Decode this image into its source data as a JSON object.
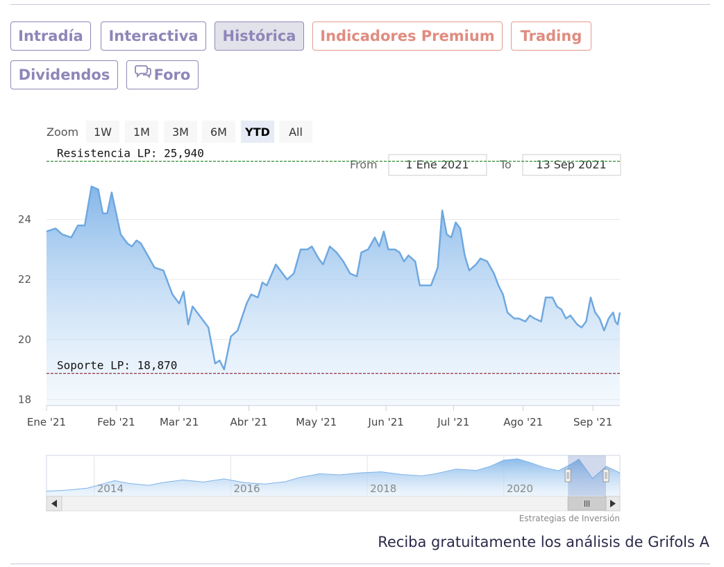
{
  "tabs": [
    {
      "label": "Intradía",
      "style": "normal"
    },
    {
      "label": "Interactiva",
      "style": "normal"
    },
    {
      "label": "Histórica",
      "style": "active"
    },
    {
      "label": "Indicadores Premium",
      "style": "premium"
    },
    {
      "label": "Trading",
      "style": "premium"
    },
    {
      "label": "Dividendos",
      "style": "normal"
    },
    {
      "label": "Foro",
      "style": "normal",
      "icon": "chat-bubbles-icon"
    }
  ],
  "range_selector": {
    "zoom_label": "Zoom",
    "buttons": [
      "1W",
      "1M",
      "3M",
      "6M",
      "YTD",
      "All"
    ],
    "selected": "YTD",
    "from_label": "From",
    "from_value": "1 Ene 2021",
    "to_label": "To",
    "to_value": "13 Sep 2021"
  },
  "chart_data": {
    "type": "area",
    "title": "",
    "xlabel": "",
    "ylabel": "",
    "x_ticks": [
      "Ene '21",
      "Feb '21",
      "Mar '21",
      "Abr '21",
      "May '21",
      "Jun '21",
      "Jul '21",
      "Ago '21",
      "Sep '21"
    ],
    "y_ticks": [
      18,
      20,
      22,
      24
    ],
    "ylim": [
      17.8,
      26.0
    ],
    "xlim": [
      "2021-01-01",
      "2021-09-13"
    ],
    "grid": true,
    "series": [
      {
        "points": [
          [
            "2021-01-01",
            23.6
          ],
          [
            "2021-01-05",
            23.7
          ],
          [
            "2021-01-08",
            23.5
          ],
          [
            "2021-01-12",
            23.4
          ],
          [
            "2021-01-15",
            23.8
          ],
          [
            "2021-01-18",
            23.8
          ],
          [
            "2021-01-21",
            25.1
          ],
          [
            "2021-01-24",
            25.0
          ],
          [
            "2021-01-26",
            24.2
          ],
          [
            "2021-01-28",
            24.2
          ],
          [
            "2021-01-30",
            24.9
          ],
          [
            "2021-02-03",
            23.5
          ],
          [
            "2021-02-06",
            23.2
          ],
          [
            "2021-02-08",
            23.1
          ],
          [
            "2021-02-10",
            23.3
          ],
          [
            "2021-02-12",
            23.2
          ],
          [
            "2021-02-15",
            22.8
          ],
          [
            "2021-02-18",
            22.4
          ],
          [
            "2021-02-22",
            22.3
          ],
          [
            "2021-02-26",
            21.5
          ],
          [
            "2021-03-01",
            21.2
          ],
          [
            "2021-03-03",
            21.6
          ],
          [
            "2021-03-05",
            20.5
          ],
          [
            "2021-03-07",
            21.1
          ],
          [
            "2021-03-10",
            20.8
          ],
          [
            "2021-03-14",
            20.4
          ],
          [
            "2021-03-17",
            19.2
          ],
          [
            "2021-03-19",
            19.3
          ],
          [
            "2021-03-21",
            19.0
          ],
          [
            "2021-03-24",
            20.1
          ],
          [
            "2021-03-27",
            20.3
          ],
          [
            "2021-03-31",
            21.2
          ],
          [
            "2021-04-02",
            21.5
          ],
          [
            "2021-04-05",
            21.4
          ],
          [
            "2021-04-07",
            21.9
          ],
          [
            "2021-04-09",
            21.8
          ],
          [
            "2021-04-13",
            22.5
          ],
          [
            "2021-04-16",
            22.2
          ],
          [
            "2021-04-18",
            22.0
          ],
          [
            "2021-04-21",
            22.2
          ],
          [
            "2021-04-24",
            23.0
          ],
          [
            "2021-04-27",
            23.0
          ],
          [
            "2021-04-29",
            23.1
          ],
          [
            "2021-05-02",
            22.7
          ],
          [
            "2021-05-04",
            22.5
          ],
          [
            "2021-05-07",
            23.1
          ],
          [
            "2021-05-10",
            22.9
          ],
          [
            "2021-05-13",
            22.6
          ],
          [
            "2021-05-16",
            22.2
          ],
          [
            "2021-05-19",
            22.1
          ],
          [
            "2021-05-21",
            22.9
          ],
          [
            "2021-05-24",
            23.0
          ],
          [
            "2021-05-27",
            23.4
          ],
          [
            "2021-05-29",
            23.1
          ],
          [
            "2021-05-31",
            23.6
          ],
          [
            "2021-06-02",
            23.0
          ],
          [
            "2021-06-05",
            23.0
          ],
          [
            "2021-06-07",
            22.9
          ],
          [
            "2021-06-09",
            22.6
          ],
          [
            "2021-06-11",
            22.8
          ],
          [
            "2021-06-14",
            22.6
          ],
          [
            "2021-06-16",
            21.8
          ],
          [
            "2021-06-18",
            21.8
          ],
          [
            "2021-06-21",
            21.8
          ],
          [
            "2021-06-24",
            22.4
          ],
          [
            "2021-06-26",
            24.3
          ],
          [
            "2021-06-28",
            23.5
          ],
          [
            "2021-06-30",
            23.4
          ],
          [
            "2021-07-02",
            23.9
          ],
          [
            "2021-07-04",
            23.7
          ],
          [
            "2021-07-06",
            22.8
          ],
          [
            "2021-07-08",
            22.3
          ],
          [
            "2021-07-11",
            22.5
          ],
          [
            "2021-07-13",
            22.7
          ],
          [
            "2021-07-16",
            22.6
          ],
          [
            "2021-07-19",
            22.2
          ],
          [
            "2021-07-21",
            21.8
          ],
          [
            "2021-07-23",
            21.5
          ],
          [
            "2021-07-25",
            20.9
          ],
          [
            "2021-07-28",
            20.7
          ],
          [
            "2021-07-30",
            20.7
          ],
          [
            "2021-08-02",
            20.6
          ],
          [
            "2021-08-04",
            20.8
          ],
          [
            "2021-08-06",
            20.7
          ],
          [
            "2021-08-09",
            20.6
          ],
          [
            "2021-08-11",
            21.4
          ],
          [
            "2021-08-14",
            21.4
          ],
          [
            "2021-08-16",
            21.1
          ],
          [
            "2021-08-18",
            21.0
          ],
          [
            "2021-08-20",
            20.7
          ],
          [
            "2021-08-22",
            20.8
          ],
          [
            "2021-08-25",
            20.5
          ],
          [
            "2021-08-27",
            20.4
          ],
          [
            "2021-08-29",
            20.6
          ],
          [
            "2021-08-31",
            21.4
          ],
          [
            "2021-09-02",
            20.9
          ],
          [
            "2021-09-04",
            20.7
          ],
          [
            "2021-09-06",
            20.3
          ],
          [
            "2021-09-08",
            20.7
          ],
          [
            "2021-09-10",
            20.9
          ],
          [
            "2021-09-11",
            20.6
          ],
          [
            "2021-09-12",
            20.5
          ],
          [
            "2021-09-13",
            20.9
          ]
        ]
      }
    ],
    "plot_lines": [
      {
        "label": "Resistencia LP: 25,940",
        "value": 25.94,
        "color": "#2e8b2e"
      },
      {
        "label": "Soporte LP: 18,870",
        "value": 18.87,
        "color": "#8b1a2e"
      }
    ],
    "navigator": {
      "x_ticks": [
        "2014",
        "2016",
        "2018",
        "2020"
      ],
      "xlim": [
        2013.3,
        2021.7
      ],
      "selection": [
        2021.0,
        2021.7
      ],
      "series": [
        [
          2013.3,
          15.5
        ],
        [
          2013.6,
          15.8
        ],
        [
          2013.9,
          16.4
        ],
        [
          2014.1,
          17.5
        ],
        [
          2014.3,
          18.6
        ],
        [
          2014.5,
          17.8
        ],
        [
          2014.8,
          17.2
        ],
        [
          2015.0,
          18.0
        ],
        [
          2015.3,
          18.8
        ],
        [
          2015.6,
          18.2
        ],
        [
          2015.9,
          19.1
        ],
        [
          2016.2,
          18.0
        ],
        [
          2016.5,
          17.6
        ],
        [
          2016.8,
          18.3
        ],
        [
          2017.0,
          19.5
        ],
        [
          2017.3,
          20.6
        ],
        [
          2017.6,
          20.3
        ],
        [
          2017.9,
          20.9
        ],
        [
          2018.2,
          21.2
        ],
        [
          2018.5,
          20.4
        ],
        [
          2018.8,
          20.0
        ],
        [
          2019.0,
          20.6
        ],
        [
          2019.3,
          22.0
        ],
        [
          2019.6,
          21.6
        ],
        [
          2019.8,
          22.8
        ],
        [
          2020.0,
          24.6
        ],
        [
          2020.2,
          25.0
        ],
        [
          2020.4,
          23.8
        ],
        [
          2020.6,
          22.4
        ],
        [
          2020.8,
          21.5
        ],
        [
          2021.0,
          23.6
        ],
        [
          2021.1,
          24.9
        ],
        [
          2021.3,
          19.2
        ],
        [
          2021.5,
          22.8
        ],
        [
          2021.7,
          20.9
        ]
      ]
    }
  },
  "credit": "Estrategias de Inversión",
  "footer": {
    "text": "Reciba gratuitamente los análisis de Grifols A"
  }
}
